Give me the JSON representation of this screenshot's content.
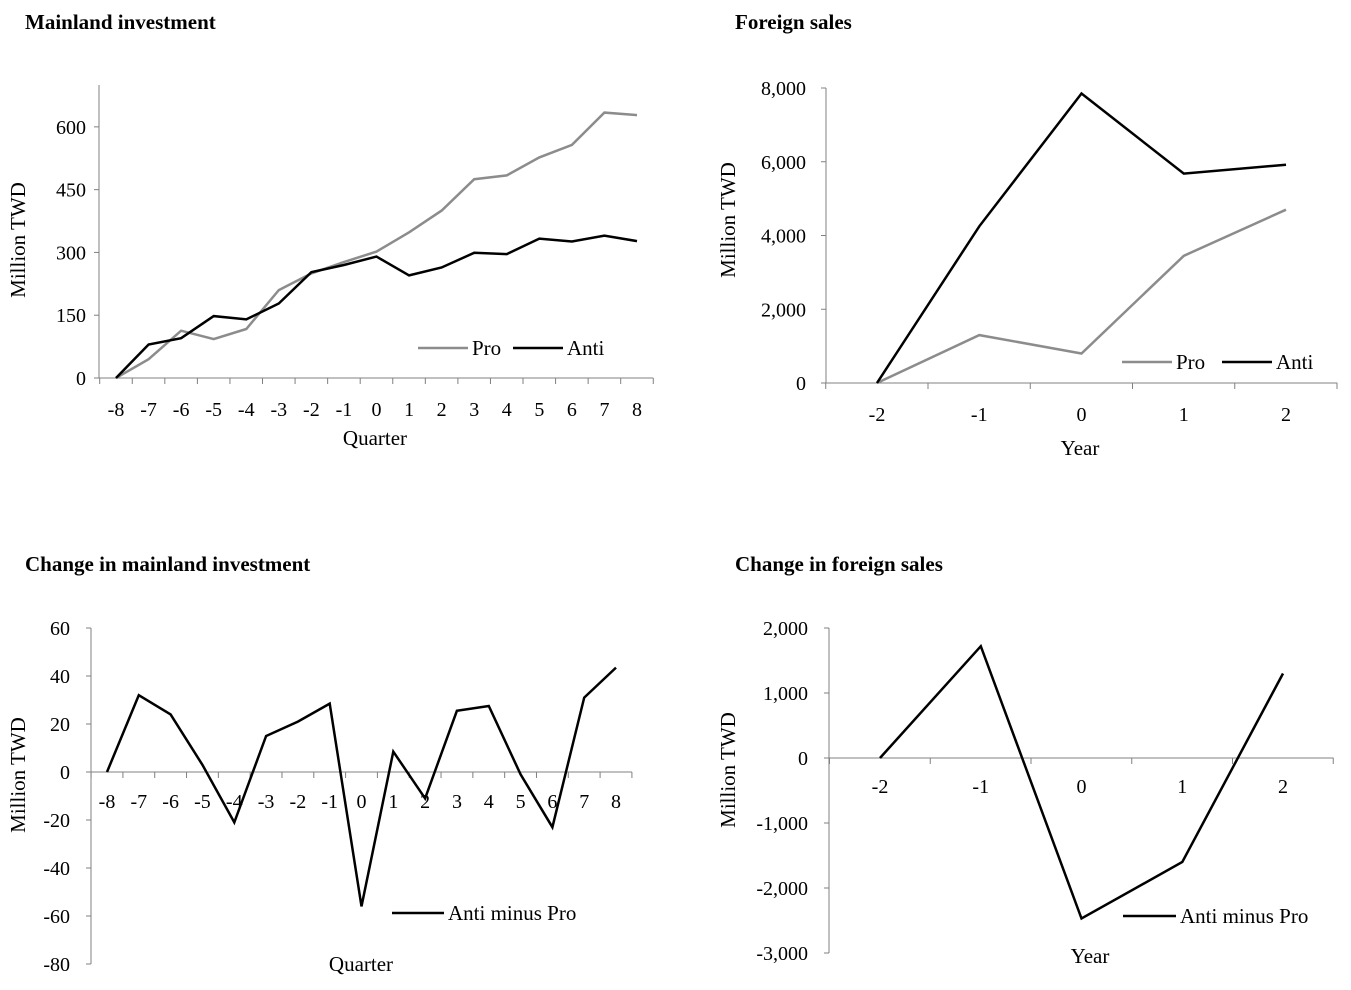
{
  "charts": [
    {
      "title": "Mainland investment",
      "type": "line",
      "xlabel": "Quarter",
      "ylabel": "Million TWD",
      "categories": [
        "-8",
        "-7",
        "-6",
        "-5",
        "-4",
        "-3",
        "-2",
        "-1",
        "0",
        "1",
        "2",
        "3",
        "4",
        "5",
        "6",
        "7",
        "8"
      ],
      "ylim": [
        0,
        700
      ],
      "yticks": [
        0,
        150,
        300,
        450,
        600
      ],
      "ytick_labels": [
        "0",
        "150",
        "300",
        "450",
        "600"
      ],
      "series": [
        {
          "name": "Pro",
          "color": "#8c8c8c",
          "values": [
            0,
            45,
            113,
            93,
            117,
            210,
            250,
            277,
            302,
            348,
            400,
            475,
            484,
            527,
            557,
            634,
            628
          ]
        },
        {
          "name": "Anti",
          "color": "#000000",
          "values": [
            0,
            80,
            95,
            148,
            140,
            178,
            253,
            270,
            290,
            245,
            264,
            299,
            296,
            333,
            326,
            340,
            327
          ]
        }
      ],
      "legend": "bottom-right"
    },
    {
      "title": "Foreign sales",
      "type": "line",
      "xlabel": "Year",
      "ylabel": "Million TWD",
      "categories": [
        "-2",
        "-1",
        "0",
        "1",
        "2"
      ],
      "ylim": [
        0,
        8000
      ],
      "yticks": [
        0,
        2000,
        4000,
        6000,
        8000
      ],
      "ytick_labels": [
        "0",
        "2,000",
        "4,000",
        "6,000",
        "8,000"
      ],
      "series": [
        {
          "name": "Pro",
          "color": "#8c8c8c",
          "values": [
            0,
            1300,
            800,
            3450,
            4700
          ]
        },
        {
          "name": "Anti",
          "color": "#000000",
          "values": [
            0,
            4250,
            7850,
            5680,
            5920
          ]
        }
      ],
      "legend": "bottom-right"
    },
    {
      "title": "Change in mainland investment",
      "type": "line",
      "xlabel": "Quarter",
      "ylabel": "Million TWD",
      "categories": [
        "-8",
        "-7",
        "-6",
        "-5",
        "-4",
        "-3",
        "-2",
        "-1",
        "0",
        "1",
        "2",
        "3",
        "4",
        "5",
        "6",
        "7",
        "8"
      ],
      "ylim": [
        -80,
        60
      ],
      "yticks": [
        -80,
        -60,
        -40,
        -20,
        0,
        20,
        40,
        60
      ],
      "ytick_labels": [
        "-80",
        "-60",
        "-40",
        "-20",
        "0",
        "20",
        "40",
        "60"
      ],
      "series": [
        {
          "name": "Anti minus Pro",
          "color": "#000000",
          "values": [
            0,
            32,
            24,
            3,
            -21,
            15,
            21,
            28.5,
            -56,
            8.5,
            -11,
            25.5,
            27.5,
            -1,
            -23,
            31,
            43.5
          ]
        }
      ],
      "legend": "bottom-right"
    },
    {
      "title": "Change in foreign sales",
      "type": "line",
      "xlabel": "Year",
      "ylabel": "Million TWD",
      "categories": [
        "-2",
        "-1",
        "0",
        "1",
        "2"
      ],
      "ylim": [
        -3000,
        2000
      ],
      "yticks": [
        -3000,
        -2000,
        -1000,
        0,
        1000,
        2000
      ],
      "ytick_labels": [
        "-3,000",
        "-2,000",
        "-1,000",
        "0",
        "1,000",
        "2,000"
      ],
      "series": [
        {
          "name": "Anti minus Pro",
          "color": "#000000",
          "values": [
            0,
            1720,
            -2470,
            -1600,
            1300
          ]
        }
      ],
      "legend": "bottom-right"
    }
  ]
}
